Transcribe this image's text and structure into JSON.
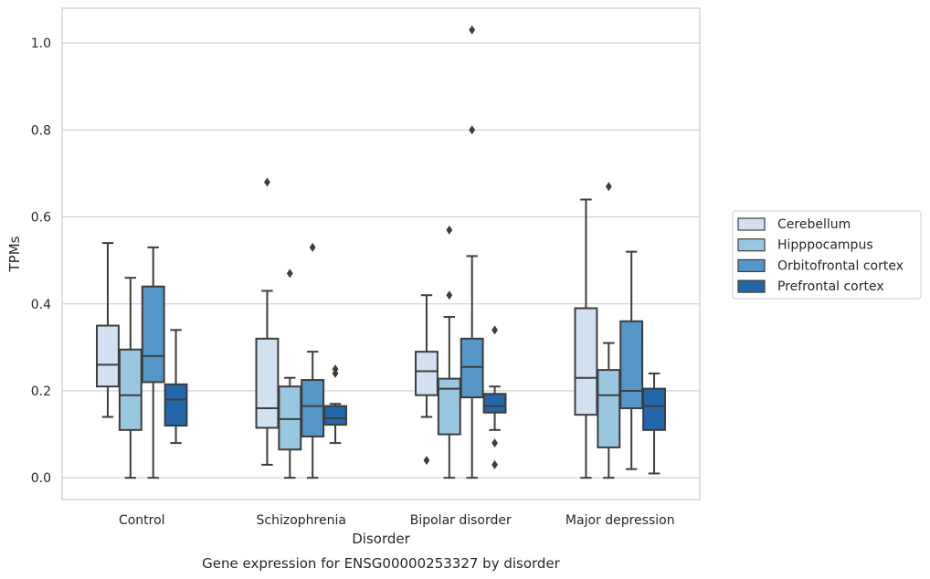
{
  "chart_data": {
    "type": "boxplot",
    "xlabel": "Disorder",
    "ylabel": "TPMs",
    "caption": "Gene expression for ENSG00000253327 by disorder",
    "ylim": [
      -0.05,
      1.08
    ],
    "yticks": [
      0.0,
      0.2,
      0.4,
      0.6,
      0.8,
      1.0
    ],
    "ytick_labels": [
      "0.0",
      "0.2",
      "0.4",
      "0.6",
      "0.8",
      "1.0"
    ],
    "grid": "horizontal",
    "legend_position": "right",
    "categories": [
      "Control",
      "Schizophrenia",
      "Bipolar disorder",
      "Major depression"
    ],
    "series": [
      {
        "name": "Cerebellum",
        "color": "#d2e1f1",
        "boxes": [
          {
            "whislo": 0.14,
            "q1": 0.21,
            "med": 0.26,
            "q3": 0.35,
            "whishi": 0.54,
            "fliers": []
          },
          {
            "whislo": 0.03,
            "q1": 0.115,
            "med": 0.16,
            "q3": 0.32,
            "whishi": 0.43,
            "fliers": [
              0.68
            ]
          },
          {
            "whislo": 0.14,
            "q1": 0.19,
            "med": 0.245,
            "q3": 0.29,
            "whishi": 0.42,
            "fliers": [
              0.04
            ]
          },
          {
            "whislo": 0.0,
            "q1": 0.145,
            "med": 0.23,
            "q3": 0.39,
            "whishi": 0.64,
            "fliers": []
          }
        ]
      },
      {
        "name": "Hipppocampus",
        "color": "#9ac7e0",
        "boxes": [
          {
            "whislo": 0.0,
            "q1": 0.11,
            "med": 0.19,
            "q3": 0.295,
            "whishi": 0.46,
            "fliers": []
          },
          {
            "whislo": 0.0,
            "q1": 0.065,
            "med": 0.135,
            "q3": 0.21,
            "whishi": 0.23,
            "fliers": [
              0.47
            ]
          },
          {
            "whislo": 0.0,
            "q1": 0.1,
            "med": 0.205,
            "q3": 0.228,
            "whishi": 0.37,
            "fliers": [
              0.57,
              0.42
            ]
          },
          {
            "whislo": 0.0,
            "q1": 0.07,
            "med": 0.19,
            "q3": 0.248,
            "whishi": 0.31,
            "fliers": [
              0.67
            ]
          }
        ]
      },
      {
        "name": "Orbitofrontal cortex",
        "color": "#5497c7",
        "boxes": [
          {
            "whislo": 0.0,
            "q1": 0.22,
            "med": 0.28,
            "q3": 0.44,
            "whishi": 0.53,
            "fliers": []
          },
          {
            "whislo": 0.0,
            "q1": 0.095,
            "med": 0.165,
            "q3": 0.225,
            "whishi": 0.29,
            "fliers": [
              0.53
            ]
          },
          {
            "whislo": 0.0,
            "q1": 0.185,
            "med": 0.255,
            "q3": 0.32,
            "whishi": 0.51,
            "fliers": [
              1.03,
              0.8
            ]
          },
          {
            "whislo": 0.02,
            "q1": 0.16,
            "med": 0.2,
            "q3": 0.36,
            "whishi": 0.52,
            "fliers": []
          }
        ]
      },
      {
        "name": "Prefrontal cortex",
        "color": "#2366a9",
        "boxes": [
          {
            "whislo": 0.08,
            "q1": 0.12,
            "med": 0.18,
            "q3": 0.215,
            "whishi": 0.34,
            "fliers": []
          },
          {
            "whislo": 0.08,
            "q1": 0.122,
            "med": 0.137,
            "q3": 0.165,
            "whishi": 0.17,
            "fliers": [
              0.25,
              0.24
            ]
          },
          {
            "whislo": 0.11,
            "q1": 0.15,
            "med": 0.165,
            "q3": 0.193,
            "whishi": 0.21,
            "fliers": [
              0.34,
              0.08,
              0.03
            ]
          },
          {
            "whislo": 0.01,
            "q1": 0.11,
            "med": 0.165,
            "q3": 0.205,
            "whishi": 0.24,
            "fliers": []
          }
        ]
      }
    ]
  }
}
